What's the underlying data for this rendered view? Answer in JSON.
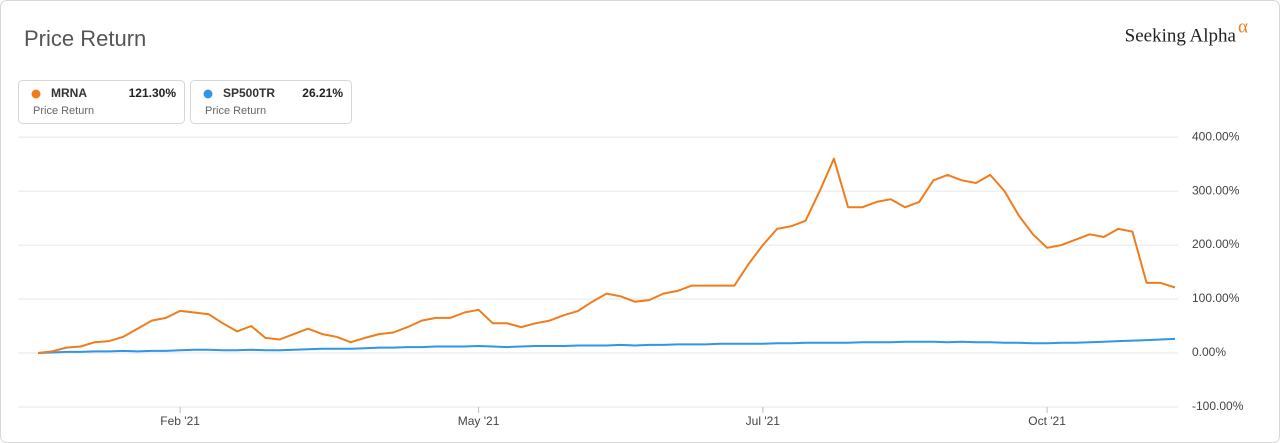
{
  "chart_data": {
    "type": "line",
    "title": "Price Return",
    "brand": "Seeking Alpha",
    "brand_mark": "α",
    "categories": [
      null,
      null,
      null,
      null,
      null,
      null,
      null,
      null,
      null,
      null,
      "Feb '21",
      null,
      null,
      null,
      null,
      null,
      null,
      null,
      null,
      null,
      null,
      null,
      null,
      null,
      null,
      null,
      null,
      null,
      null,
      null,
      null,
      "May '21",
      null,
      null,
      null,
      null,
      null,
      null,
      null,
      null,
      null,
      null,
      null,
      null,
      null,
      null,
      null,
      null,
      null,
      null,
      null,
      "Jul '21",
      null,
      null,
      null,
      null,
      null,
      null,
      null,
      null,
      null,
      null,
      null,
      null,
      null,
      null,
      null,
      null,
      null,
      null,
      null,
      "Oct '21",
      null,
      null,
      null,
      null,
      null,
      null,
      null,
      null,
      null
    ],
    "series": [
      {
        "name": "MRNA",
        "color": "#f07c1c",
        "last_label": "121.30%",
        "metric": "Price Return",
        "values": [
          0,
          3,
          10,
          12,
          20,
          22,
          30,
          45,
          60,
          65,
          78,
          75,
          72,
          55,
          40,
          50,
          28,
          25,
          35,
          45,
          35,
          30,
          20,
          28,
          35,
          38,
          48,
          60,
          65,
          65,
          75,
          80,
          55,
          55,
          48,
          55,
          60,
          70,
          78,
          95,
          110,
          105,
          95,
          98,
          110,
          115,
          125,
          125,
          125,
          125,
          165,
          200,
          230,
          235,
          245,
          300,
          360,
          270,
          270,
          280,
          285,
          270,
          280,
          320,
          330,
          320,
          315,
          330,
          300,
          255,
          220,
          195,
          200,
          210,
          220,
          215,
          230,
          225,
          130,
          130,
          121.3
        ]
      },
      {
        "name": "SP500TR",
        "color": "#2f96e8",
        "last_label": "26.21%",
        "metric": "Price Return",
        "values": [
          0,
          1,
          2,
          2,
          3,
          3,
          4,
          3,
          4,
          4,
          5,
          6,
          6,
          5,
          5,
          6,
          5,
          5,
          6,
          7,
          8,
          8,
          8,
          9,
          10,
          10,
          11,
          11,
          12,
          12,
          12,
          13,
          12,
          11,
          12,
          13,
          13,
          13,
          14,
          14,
          14,
          15,
          14,
          15,
          15,
          16,
          16,
          16,
          17,
          17,
          17,
          17,
          18,
          18,
          19,
          19,
          19,
          19,
          20,
          20,
          20,
          21,
          21,
          21,
          20,
          21,
          20,
          20,
          19,
          19,
          18,
          18,
          19,
          19,
          20,
          21,
          22,
          23,
          24,
          25,
          26.21
        ]
      }
    ],
    "ylim": [
      -100,
      428
    ],
    "yticks": [
      {
        "value": -100,
        "label": "-100.00%"
      },
      {
        "value": 0,
        "label": "0.00%"
      },
      {
        "value": 100,
        "label": "100.00%"
      },
      {
        "value": 200,
        "label": "200.00%"
      },
      {
        "value": 300,
        "label": "300.00%"
      },
      {
        "value": 400,
        "label": "400.00%"
      }
    ],
    "grid": true
  }
}
